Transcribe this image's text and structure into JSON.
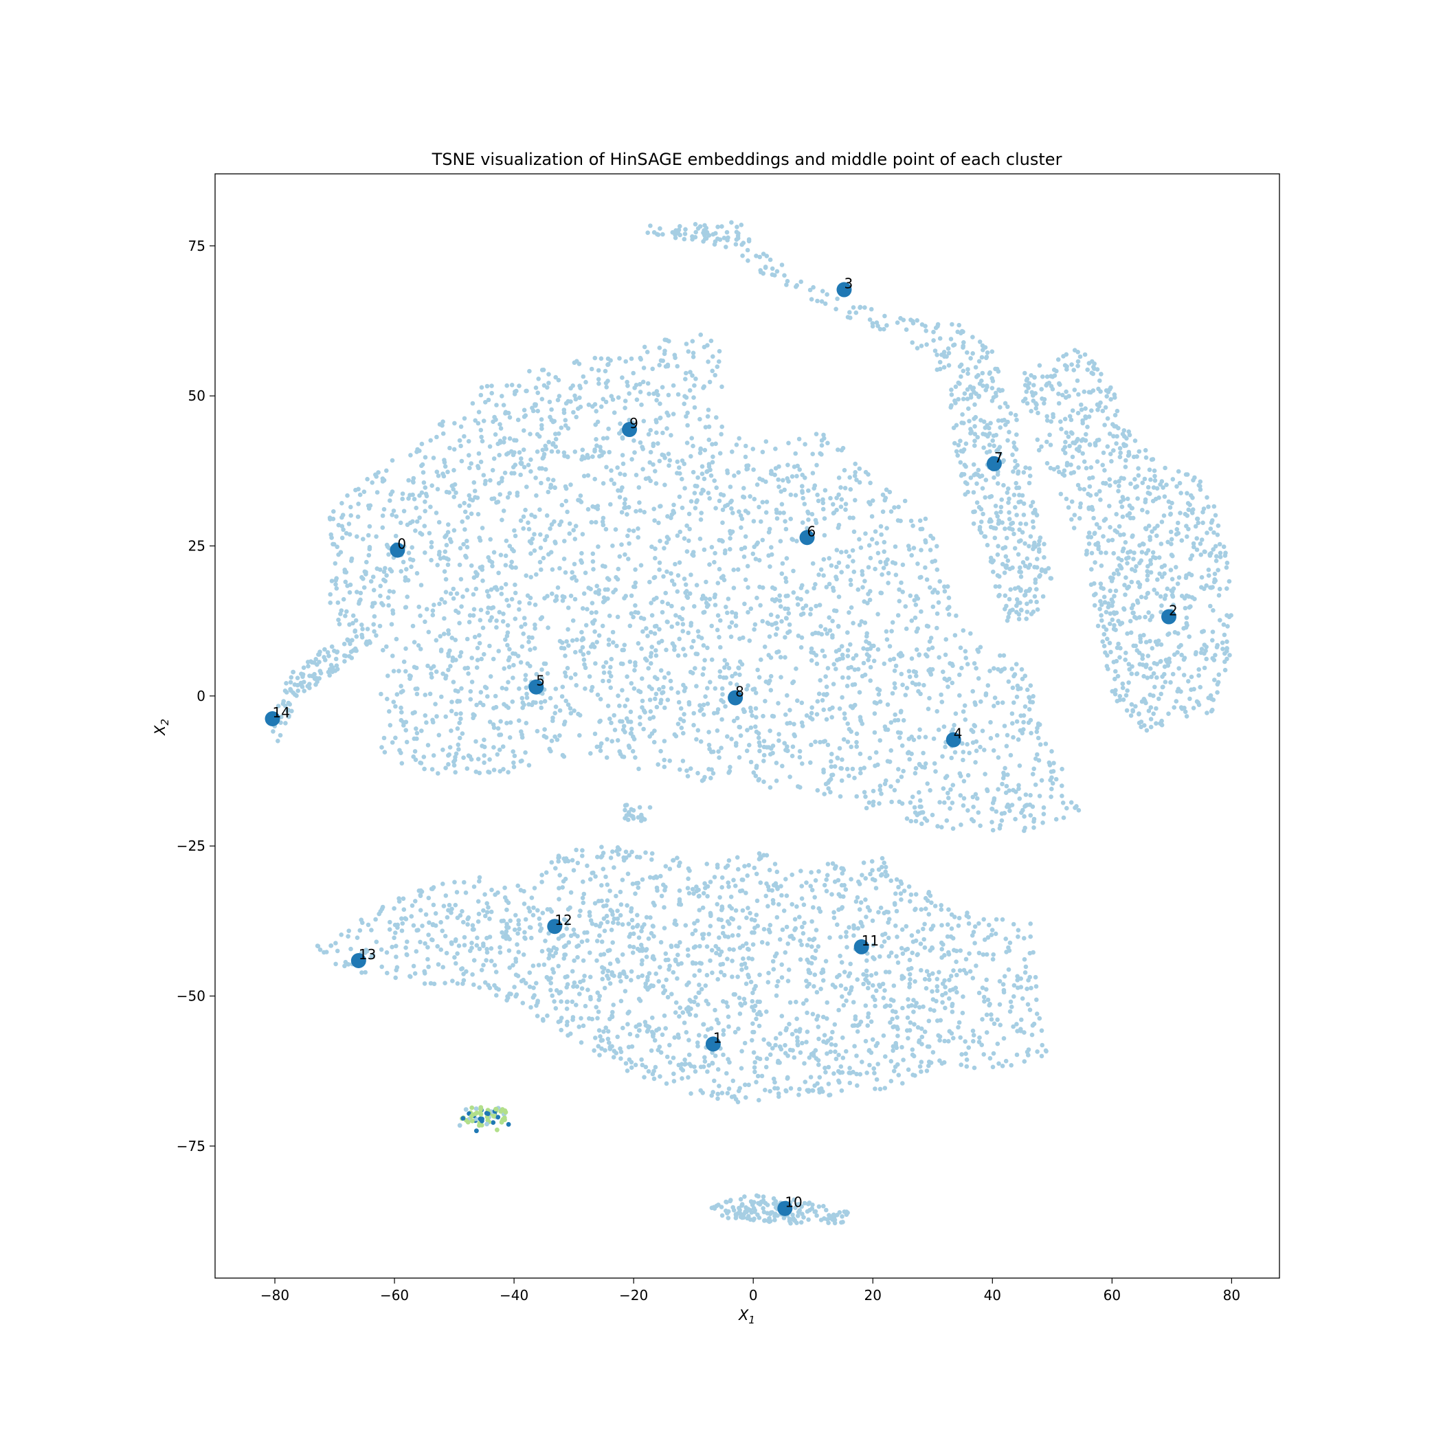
{
  "chart_data": {
    "type": "scatter",
    "title": "TSNE visualization of HinSAGE embeddings and middle point of each cluster",
    "xlabel_base": "X",
    "xlabel_sub": "1",
    "ylabel_base": "X",
    "ylabel_sub": "2",
    "xlim": [
      -90,
      88
    ],
    "ylim": [
      -97,
      87
    ],
    "xticks": [
      -80,
      -60,
      -40,
      -20,
      0,
      20,
      40,
      60,
      80
    ],
    "yticks": [
      -75,
      -50,
      -25,
      0,
      25,
      50,
      75
    ],
    "xtick_labels": [
      "−80",
      "−60",
      "−40",
      "−20",
      "0",
      "20",
      "40",
      "60",
      "80"
    ],
    "ytick_labels": [
      "−75",
      "−50",
      "−25",
      "0",
      "25",
      "50",
      "75"
    ],
    "grid": false,
    "colors": {
      "points": "#a6cee3",
      "centroids": "#1f78b4",
      "outlier_light": "#b2df8a",
      "outlier_dark": "#1f78b4"
    },
    "point_regions": [
      {
        "name": "upper-main",
        "poly": [
          [
            -72,
            30
          ],
          [
            -65,
            36
          ],
          [
            -55,
            43
          ],
          [
            -45,
            52
          ],
          [
            -35,
            55
          ],
          [
            -20,
            58
          ],
          [
            -10,
            61
          ],
          [
            -5,
            58
          ],
          [
            -5,
            46
          ],
          [
            3,
            42
          ],
          [
            12,
            44
          ],
          [
            20,
            37
          ],
          [
            27,
            33
          ],
          [
            30,
            28
          ],
          [
            32,
            20
          ],
          [
            35,
            12
          ],
          [
            40,
            8
          ],
          [
            45,
            6
          ],
          [
            47,
            0
          ],
          [
            50,
            -8
          ],
          [
            53,
            -15
          ],
          [
            55,
            -20
          ],
          [
            50,
            -22
          ],
          [
            40,
            -23
          ],
          [
            30,
            -22
          ],
          [
            20,
            -19
          ],
          [
            10,
            -16
          ],
          [
            0,
            -15
          ],
          [
            -10,
            -14
          ],
          [
            -20,
            -12
          ],
          [
            -28,
            -10
          ],
          [
            -35,
            -11
          ],
          [
            -40,
            -13
          ],
          [
            -45,
            -13
          ],
          [
            -55,
            -13
          ],
          [
            -62,
            -10
          ],
          [
            -63,
            0
          ],
          [
            -60,
            6
          ],
          [
            -68,
            10
          ],
          [
            -72,
            15
          ],
          [
            -70,
            22
          ]
        ],
        "count": 2800
      },
      {
        "name": "arm-14",
        "poly": [
          [
            -81,
            -8
          ],
          [
            -80,
            -1
          ],
          [
            -77,
            4
          ],
          [
            -72,
            8
          ],
          [
            -66,
            12
          ],
          [
            -64,
            8
          ],
          [
            -70,
            4
          ],
          [
            -76,
            0
          ],
          [
            -79,
            -8
          ]
        ],
        "count": 110
      },
      {
        "name": "upper-right-band",
        "poly": [
          [
            -18,
            79
          ],
          [
            -2,
            79
          ],
          [
            0,
            75
          ],
          [
            8,
            70
          ],
          [
            15,
            66
          ],
          [
            25,
            63
          ],
          [
            35,
            62
          ],
          [
            40,
            58
          ],
          [
            43,
            50
          ],
          [
            46,
            40
          ],
          [
            48,
            28
          ],
          [
            50,
            20
          ],
          [
            47,
            13
          ],
          [
            42,
            12
          ],
          [
            40,
            20
          ],
          [
            37,
            28
          ],
          [
            34,
            38
          ],
          [
            33,
            48
          ],
          [
            30,
            55
          ],
          [
            25,
            60
          ],
          [
            18,
            62
          ],
          [
            10,
            65
          ],
          [
            2,
            70
          ],
          [
            -5,
            75
          ],
          [
            -18,
            77
          ]
        ],
        "count": 520
      },
      {
        "name": "right-cluster",
        "poly": [
          [
            45,
            55
          ],
          [
            55,
            58
          ],
          [
            60,
            52
          ],
          [
            62,
            46
          ],
          [
            67,
            40
          ],
          [
            75,
            36
          ],
          [
            78,
            30
          ],
          [
            80,
            18
          ],
          [
            80,
            8
          ],
          [
            78,
            -2
          ],
          [
            72,
            -5
          ],
          [
            65,
            -6
          ],
          [
            60,
            0
          ],
          [
            58,
            10
          ],
          [
            56,
            20
          ],
          [
            53,
            30
          ],
          [
            48,
            40
          ],
          [
            45,
            48
          ]
        ],
        "count": 820
      },
      {
        "name": "lower-main",
        "poly": [
          [
            -75,
            -43
          ],
          [
            -68,
            -38
          ],
          [
            -58,
            -33
          ],
          [
            -48,
            -30
          ],
          [
            -38,
            -31
          ],
          [
            -30,
            -24
          ],
          [
            -18,
            -26
          ],
          [
            -6,
            -28
          ],
          [
            2,
            -25
          ],
          [
            5,
            -30
          ],
          [
            12,
            -28
          ],
          [
            22,
            -27
          ],
          [
            30,
            -33
          ],
          [
            38,
            -37
          ],
          [
            46,
            -36
          ],
          [
            48,
            -45
          ],
          [
            48,
            -55
          ],
          [
            50,
            -60
          ],
          [
            42,
            -62
          ],
          [
            32,
            -62
          ],
          [
            22,
            -66
          ],
          [
            10,
            -67
          ],
          [
            -5,
            -68
          ],
          [
            -12,
            -66
          ],
          [
            -20,
            -63
          ],
          [
            -30,
            -58
          ],
          [
            -38,
            -52
          ],
          [
            -48,
            -48
          ],
          [
            -58,
            -48
          ],
          [
            -68,
            -46
          ]
        ],
        "count": 1800
      },
      {
        "name": "mini-top",
        "poly": [
          [
            -22,
            -18
          ],
          [
            -17,
            -18
          ],
          [
            -18,
            -21
          ],
          [
            -22,
            -21
          ]
        ],
        "count": 22
      },
      {
        "name": "bottom-10",
        "poly": [
          [
            -8,
            -85
          ],
          [
            0,
            -83
          ],
          [
            8,
            -84
          ],
          [
            16,
            -86
          ],
          [
            15,
            -88
          ],
          [
            6,
            -88
          ],
          [
            -5,
            -87
          ]
        ],
        "count": 160
      }
    ],
    "outlier_cluster": {
      "x": -45,
      "y": -70,
      "count": 70
    },
    "centroids": [
      {
        "label": "0",
        "x": -59.5,
        "y": 24.3
      },
      {
        "label": "1",
        "x": -6.7,
        "y": -58.0
      },
      {
        "label": "2",
        "x": 69.5,
        "y": 13.2
      },
      {
        "label": "3",
        "x": 15.2,
        "y": 67.7
      },
      {
        "label": "4",
        "x": 33.5,
        "y": -7.3
      },
      {
        "label": "5",
        "x": -36.3,
        "y": 1.5
      },
      {
        "label": "6",
        "x": 9.0,
        "y": 26.4
      },
      {
        "label": "7",
        "x": 40.3,
        "y": 38.7
      },
      {
        "label": "8",
        "x": -3.0,
        "y": -0.3
      },
      {
        "label": "9",
        "x": -20.7,
        "y": 44.4
      },
      {
        "label": "10",
        "x": 5.3,
        "y": -85.4
      },
      {
        "label": "11",
        "x": 18.1,
        "y": -41.8
      },
      {
        "label": "12",
        "x": -33.2,
        "y": -38.4
      },
      {
        "label": "13",
        "x": -66.0,
        "y": -44.1
      },
      {
        "label": "14",
        "x": -80.4,
        "y": -3.8
      }
    ]
  }
}
